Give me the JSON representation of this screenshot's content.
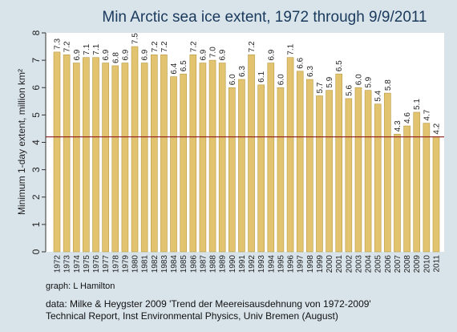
{
  "chart_data": {
    "type": "bar",
    "title": "Min Arctic sea ice extent, 1972 through 9/9/2011",
    "ylabel": "Minimum 1-day extent, million km²",
    "xlabel": "",
    "ylim": [
      0,
      8
    ],
    "yticks": [
      0,
      1,
      2,
      3,
      4,
      5,
      6,
      7,
      8
    ],
    "grid": false,
    "legend": "none",
    "reference_line": 4.2,
    "categories": [
      "1972",
      "1973",
      "1974",
      "1975",
      "1976",
      "1977",
      "1978",
      "1979",
      "1980",
      "1981",
      "1982",
      "1983",
      "1984",
      "1985",
      "1986",
      "1987",
      "1988",
      "1989",
      "1990",
      "1991",
      "1992",
      "1993",
      "1994",
      "1995",
      "1996",
      "1997",
      "1998",
      "1999",
      "2000",
      "2001",
      "2002",
      "2003",
      "2004",
      "2005",
      "2006",
      "2007",
      "2008",
      "2009",
      "2010",
      "2011"
    ],
    "values": [
      7.3,
      7.2,
      6.9,
      7.1,
      7.1,
      6.9,
      6.8,
      6.9,
      7.5,
      6.9,
      7.2,
      7.2,
      6.4,
      6.5,
      7.2,
      6.9,
      7.0,
      6.9,
      6.0,
      6.3,
      7.2,
      6.1,
      6.9,
      6.0,
      7.1,
      6.6,
      6.3,
      5.7,
      5.9,
      6.5,
      5.6,
      6.0,
      5.9,
      5.4,
      5.8,
      4.3,
      4.6,
      5.1,
      4.7,
      4.2
    ],
    "value_labels": [
      "7.3",
      "7.2",
      "6.9",
      "7.1",
      "7.1",
      "6.9",
      "6.8",
      "6.9",
      "7.5",
      "6.9",
      "7.2",
      "7.2",
      "6.4",
      "6.5",
      "7.2",
      "6.9",
      "7.0",
      "6.9",
      "6.0",
      "6.3",
      "7.2",
      "6.1",
      "6.9",
      "6.0",
      "7.1",
      "6.6",
      "6.3",
      "5.7",
      "5.9",
      "6.5",
      "5.6",
      "6.0",
      "5.9",
      "5.4",
      "5.8",
      "4.3",
      "4.6",
      "5.1",
      "4.7",
      "4.2"
    ],
    "colors": {
      "bar": "#e2c36f",
      "bar_edge": "#b89a45",
      "plot_bg": "#ffffff",
      "reference_line": "#8b1a1a",
      "title": "#1a3a5c"
    }
  },
  "footer": {
    "credit": "graph:  L Hamilton",
    "source_line1": "data: Milke & Heygster 2009 'Trend der Meereisausdehnung von 1972-2009'",
    "source_line2": "Technical Report, Inst Environmental Physics, Univ Bremen (August)"
  }
}
